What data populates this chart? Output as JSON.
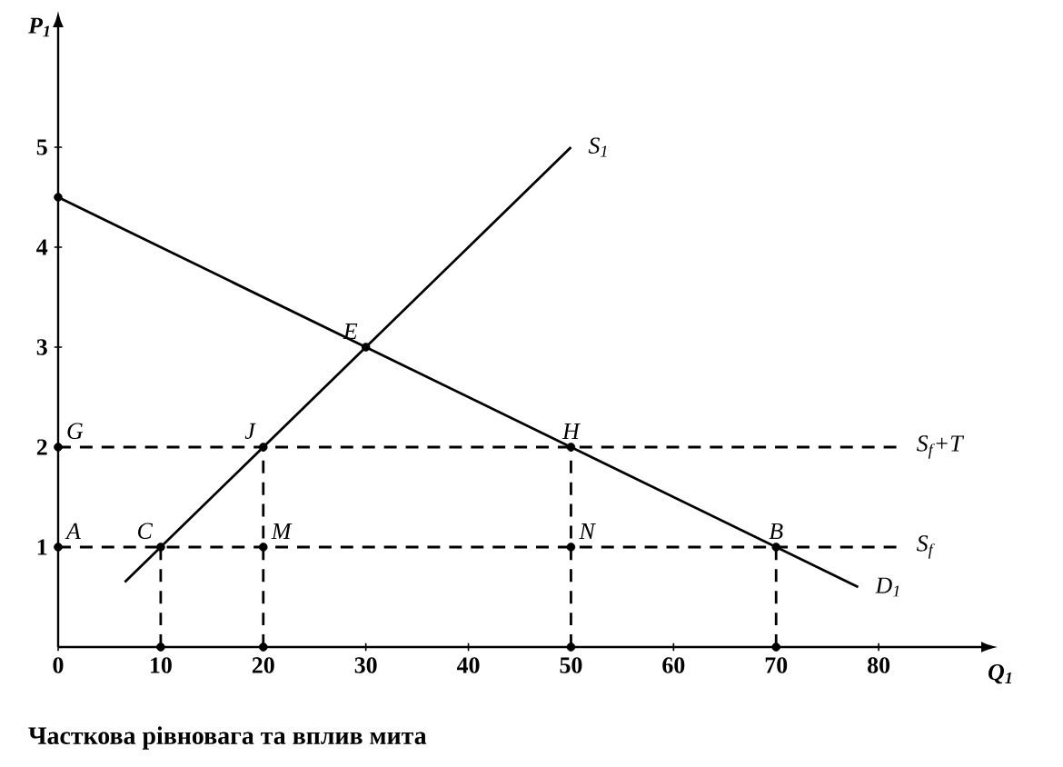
{
  "chart_data": {
    "type": "line",
    "title": "Часткова рівновага та вплив мита",
    "xlabel": "Q$_{1}$",
    "ylabel": "P$_{1}$",
    "xlim": [
      0,
      90
    ],
    "ylim": [
      0,
      6.2
    ],
    "xticks": [
      0,
      10,
      20,
      30,
      40,
      50,
      60,
      70,
      80
    ],
    "yticks": [
      1,
      2,
      3,
      4,
      5
    ],
    "grid": false,
    "series": [
      {
        "name": "S$_{1}$",
        "color": "#000000",
        "line_style": "solid",
        "marker": "none",
        "x": [
          6.5,
          50
        ],
        "values": [
          0.65,
          5.0
        ]
      },
      {
        "name": "D$_{1}$",
        "color": "#000000",
        "line_style": "solid",
        "marker": "none",
        "x": [
          0,
          78
        ],
        "values": [
          4.5,
          0.6
        ]
      },
      {
        "name": "S$_{f}$+T",
        "color": "#000000",
        "line_style": "dashed",
        "marker": "none",
        "x": [
          0,
          82
        ],
        "values": [
          2,
          2
        ]
      },
      {
        "name": "S$_{f}$",
        "color": "#000000",
        "line_style": "dashed",
        "marker": "none",
        "x": [
          0,
          82
        ],
        "values": [
          1,
          1
        ]
      },
      {
        "color": "#000000",
        "line_style": "dashed",
        "marker": "none",
        "x": [
          10,
          10
        ],
        "values": [
          0,
          1
        ]
      },
      {
        "color": "#000000",
        "line_style": "dashed",
        "marker": "none",
        "x": [
          20,
          20
        ],
        "values": [
          0,
          2
        ]
      },
      {
        "color": "#000000",
        "line_style": "dashed",
        "marker": "none",
        "x": [
          50,
          50
        ],
        "values": [
          0,
          2
        ]
      },
      {
        "color": "#000000",
        "line_style": "dashed",
        "marker": "none",
        "x": [
          70,
          70
        ],
        "values": [
          0,
          1
        ]
      },
      {
        "type": "scatter",
        "color": "#000000",
        "marker": "circle",
        "x": [
          0,
          30,
          0,
          20,
          50,
          0,
          10,
          20,
          50,
          70,
          10,
          20,
          50,
          70
        ],
        "values": [
          4.5,
          3,
          2,
          2,
          2,
          1,
          1,
          1,
          1,
          1,
          0,
          0,
          0,
          0
        ]
      }
    ],
    "annotations": [
      {
        "text": "E",
        "x": 30,
        "y": 3
      },
      {
        "text": "G",
        "x": 0,
        "y": 2
      },
      {
        "text": "J",
        "x": 20,
        "y": 2
      },
      {
        "text": "H",
        "x": 50,
        "y": 2
      },
      {
        "text": "A",
        "x": 0,
        "y": 1
      },
      {
        "text": "C",
        "x": 10,
        "y": 1
      },
      {
        "text": "M",
        "x": 20,
        "y": 1
      },
      {
        "text": "N",
        "x": 50,
        "y": 1
      },
      {
        "text": "B",
        "x": 70,
        "y": 1
      }
    ]
  }
}
